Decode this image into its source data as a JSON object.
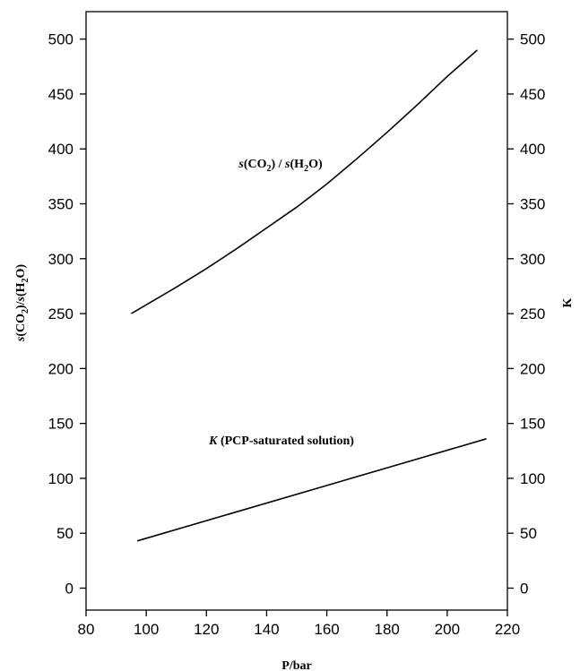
{
  "chart_data": {
    "type": "line",
    "xlabel": "P/bar",
    "ylabel_left": {
      "s1": "s",
      "p1": "(CO",
      "sub1": "2",
      "p2": ")/",
      "s2": "s",
      "p3": "(H",
      "sub2": "2",
      "p4": "O)"
    },
    "ylabel_right": "K",
    "xlim": [
      80,
      220
    ],
    "ylim": [
      -20,
      525
    ],
    "x_ticks": [
      80,
      100,
      120,
      140,
      160,
      180,
      200,
      220
    ],
    "y_ticks": [
      0,
      50,
      100,
      150,
      200,
      250,
      300,
      350,
      400,
      450,
      500
    ],
    "x_tick_labels": [
      "80",
      "100",
      "120",
      "140",
      "160",
      "180",
      "200",
      "220"
    ],
    "y_tick_labels": [
      "0",
      "50",
      "100",
      "150",
      "200",
      "250",
      "300",
      "350",
      "400",
      "450",
      "500"
    ],
    "y_right_tick_labels": [
      "0",
      "50",
      "100",
      "150",
      "200",
      "250",
      "300",
      "350",
      "400",
      "450",
      "500"
    ],
    "series": [
      {
        "name": "s(CO2) / s(H2O)",
        "x": [
          95,
          110,
          120,
          130,
          140,
          150,
          160,
          170,
          180,
          190,
          200,
          210
        ],
        "values": [
          250,
          274,
          291,
          309,
          328,
          347,
          368,
          391,
          415,
          440,
          466,
          490
        ]
      },
      {
        "name": "K (PCP-saturated solution)",
        "x": [
          97,
          213
        ],
        "values": [
          43,
          136
        ]
      }
    ],
    "annotations": {
      "series1": {
        "s1": "s",
        "p1": "(CO",
        "sub1": "2",
        "p2": ") / ",
        "s2": "s",
        "p3": "(H",
        "sub2": "2",
        "p4": "O)"
      },
      "series2": {
        "k": "K",
        "rest": " (PCP-saturated solution)"
      }
    },
    "grid": false
  }
}
